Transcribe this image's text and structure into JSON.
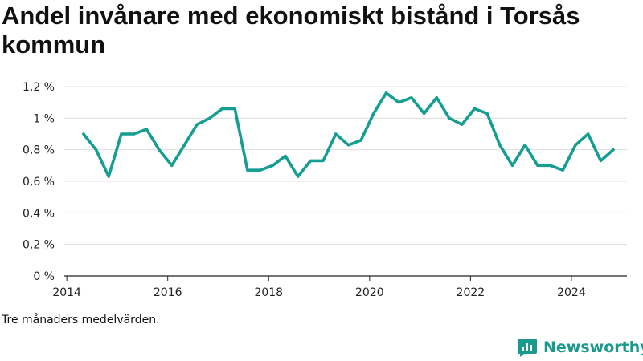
{
  "title": "Andel invånare med ekonomiskt bistånd i Torsås kommun",
  "note": "Tre månaders medelvärden.",
  "brand": "Newsworthy",
  "colors": {
    "line": "#159e91",
    "grid": "#dcdcdc",
    "axis": "#222222",
    "brand": "#1a9a8e"
  },
  "chart_data": {
    "type": "line",
    "title": "Andel invånare med ekonomiskt bistånd i Torsås kommun",
    "xlabel": "",
    "ylabel": "",
    "xlim": [
      2013.95,
      2025.1
    ],
    "ylim": [
      0,
      1.2
    ],
    "y_ticks": [
      0,
      0.2,
      0.4,
      0.6,
      0.8,
      1.0,
      1.2
    ],
    "y_tick_labels": [
      "0 %",
      "0,2 %",
      "0,4 %",
      "0,6 %",
      "0,8 %",
      "1 %",
      "1,2 %"
    ],
    "x_ticks": [
      2014,
      2016,
      2018,
      2020,
      2022,
      2024
    ],
    "x_tick_labels": [
      "2014",
      "2016",
      "2018",
      "2020",
      "2022",
      "2024"
    ],
    "grid": true,
    "series": [
      {
        "x": [
          2014.33,
          2014.58,
          2014.83,
          2015.08,
          2015.33,
          2015.58,
          2015.83,
          2016.08,
          2016.33,
          2016.58,
          2016.83,
          2017.08,
          2017.33,
          2017.58,
          2017.83,
          2018.08,
          2018.33,
          2018.58,
          2018.83,
          2019.08,
          2019.33,
          2019.58,
          2019.83,
          2020.08,
          2020.33,
          2020.58,
          2020.83,
          2021.08,
          2021.33,
          2021.58,
          2021.83,
          2022.08,
          2022.33,
          2022.58,
          2022.83,
          2023.08,
          2023.33,
          2023.58,
          2023.83,
          2024.08,
          2024.33,
          2024.58,
          2024.83
        ],
        "values": [
          0.9,
          0.8,
          0.63,
          0.9,
          0.9,
          0.93,
          0.8,
          0.7,
          0.83,
          0.96,
          1.0,
          1.06,
          1.06,
          0.67,
          0.67,
          0.7,
          0.76,
          0.63,
          0.73,
          0.73,
          0.9,
          0.83,
          0.86,
          1.03,
          1.16,
          1.1,
          1.13,
          1.03,
          1.13,
          1.0,
          0.96,
          1.06,
          1.03,
          0.83,
          0.7,
          0.83,
          0.7,
          0.7,
          0.67,
          0.83,
          0.9,
          0.73,
          0.8
        ]
      }
    ]
  }
}
